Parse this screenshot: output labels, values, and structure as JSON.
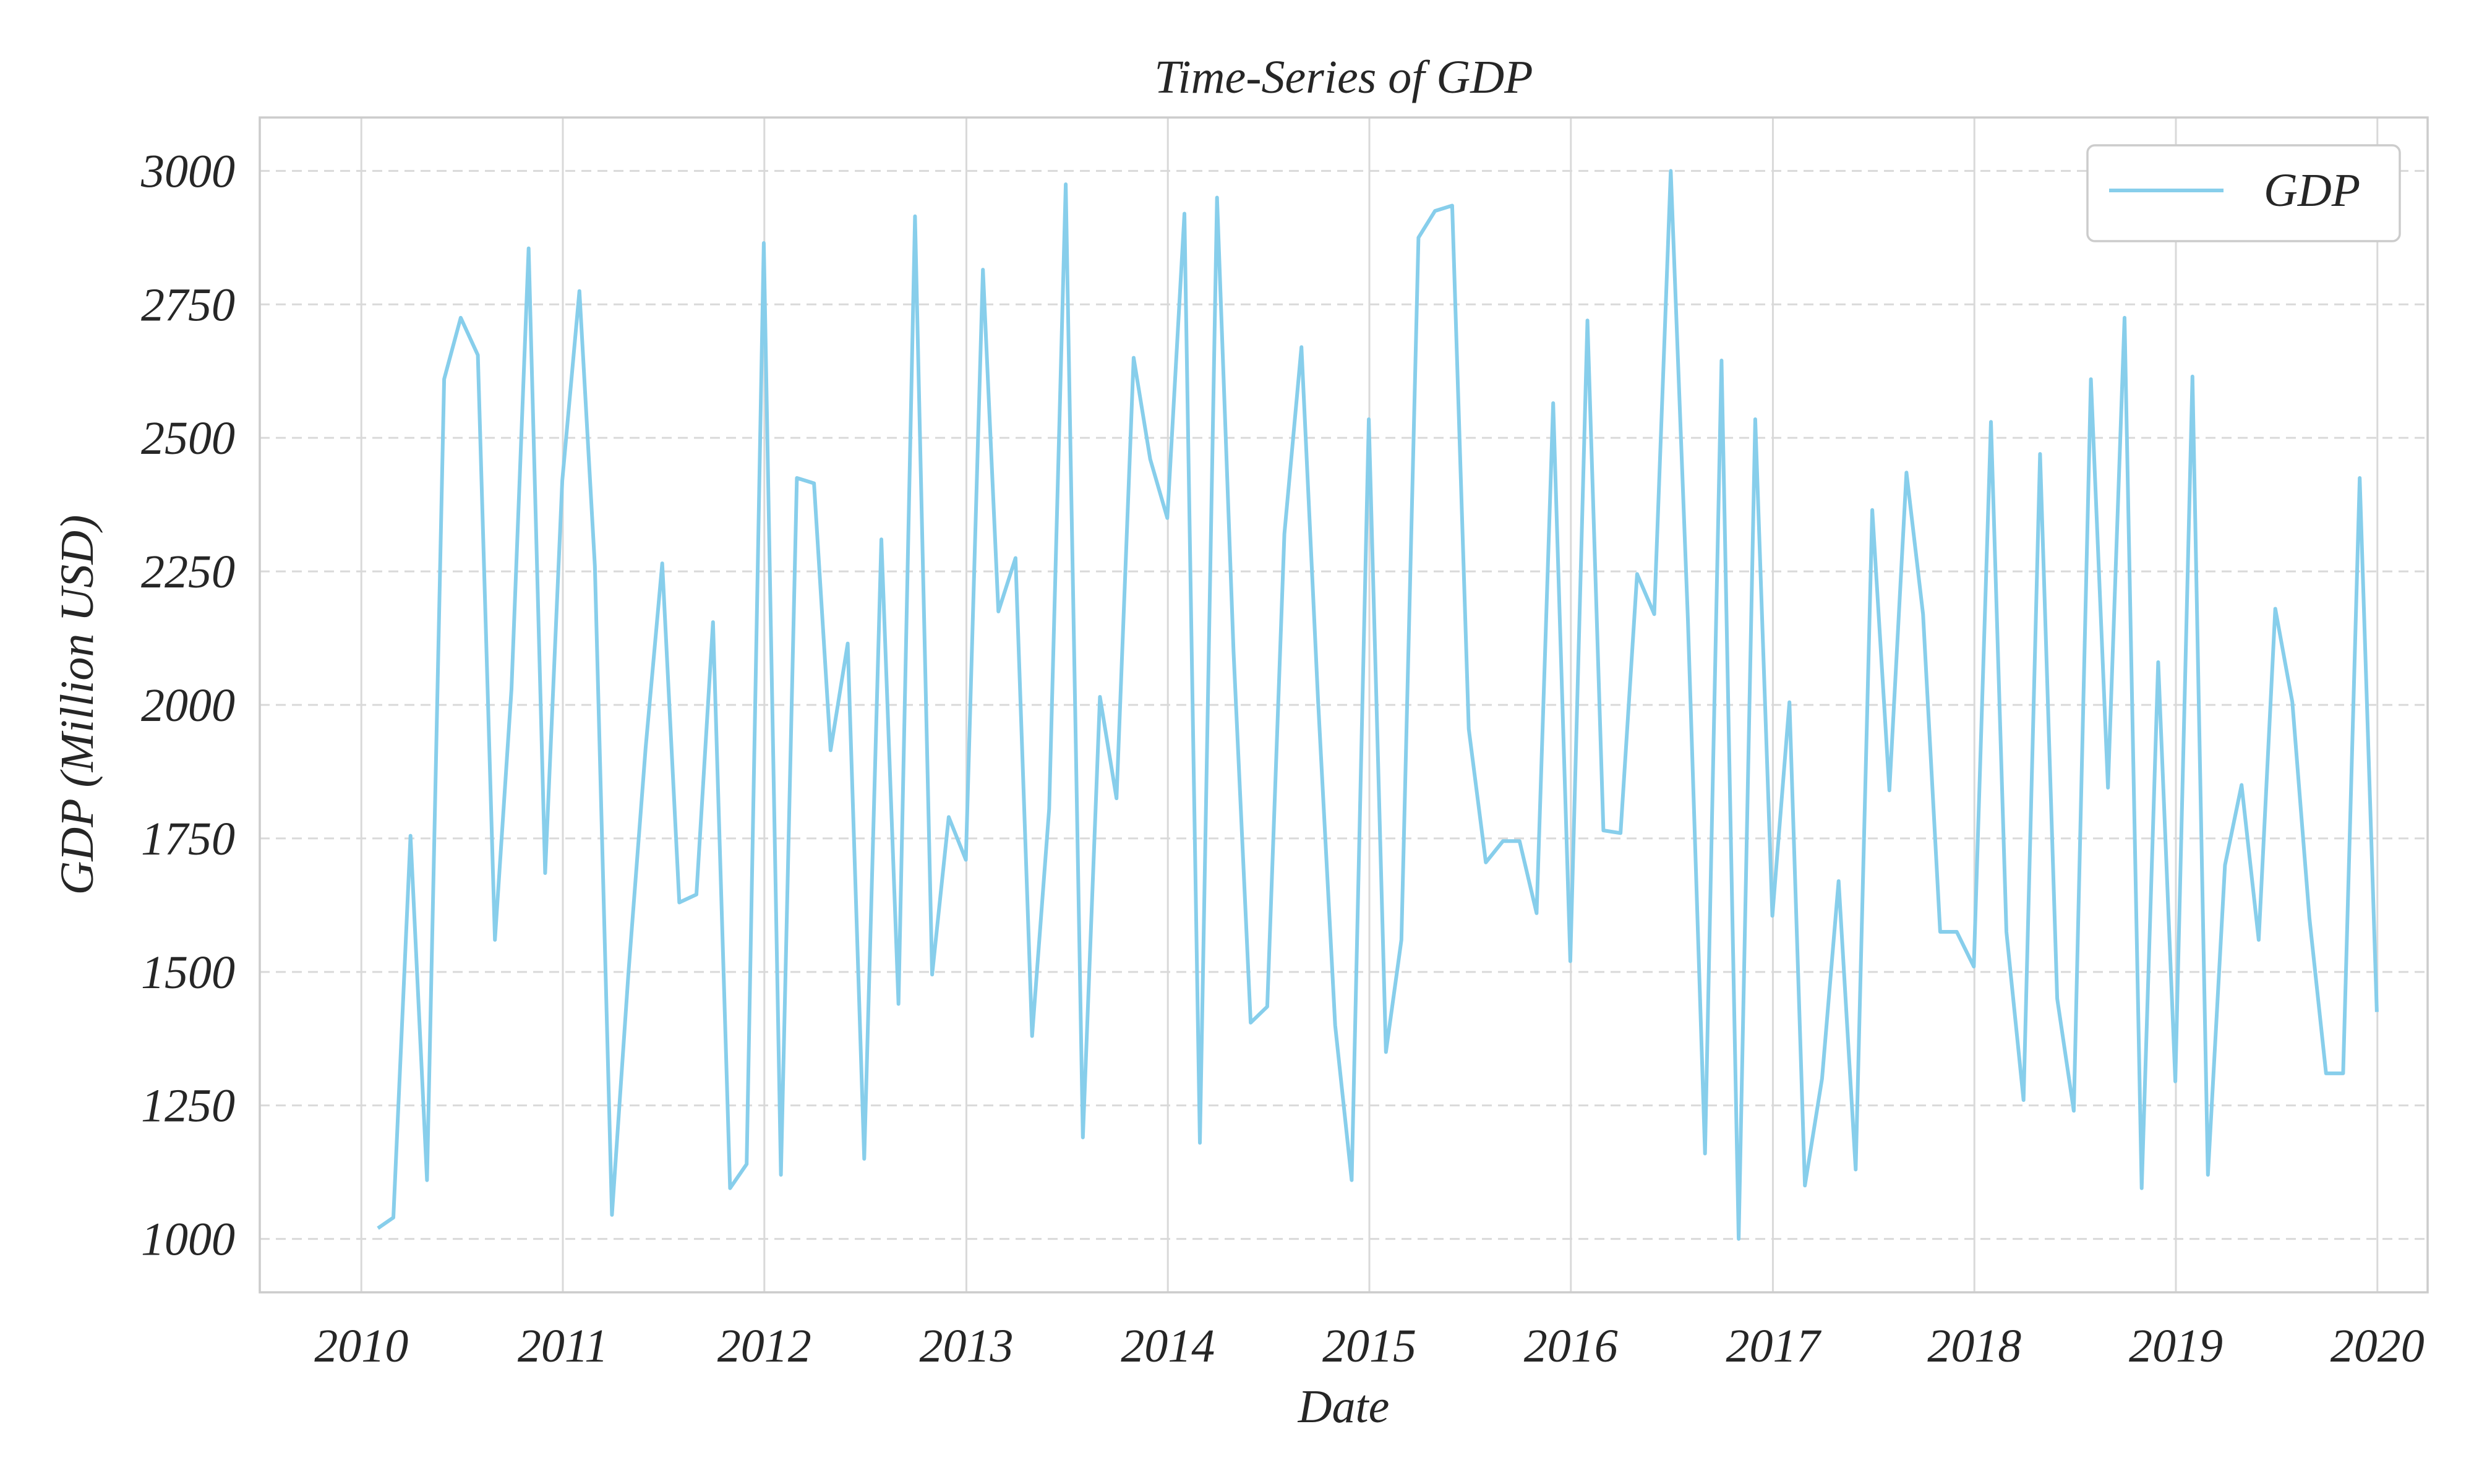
{
  "chart_data": {
    "type": "line",
    "title": "Time-Series of GDP",
    "xlabel": "Date",
    "ylabel": "GDP (Million USD)",
    "xlim": [
      "2009-07-01",
      "2020-04-01"
    ],
    "ylim": [
      900,
      3100
    ],
    "x_ticks": [
      "2010",
      "2011",
      "2012",
      "2013",
      "2014",
      "2015",
      "2016",
      "2017",
      "2018",
      "2019",
      "2020"
    ],
    "y_ticks": [
      1000,
      1250,
      1500,
      1750,
      2000,
      2250,
      2500,
      2750,
      3000
    ],
    "grid": true,
    "legend": {
      "position": "top-right",
      "entries": [
        "GDP"
      ]
    },
    "colors": {
      "series": "#87ceeb"
    },
    "series": [
      {
        "name": "GDP",
        "x": [
          "2010-01-31",
          "2010-02-28",
          "2010-03-31",
          "2010-04-30",
          "2010-05-31",
          "2010-06-30",
          "2010-07-31",
          "2010-08-31",
          "2010-09-30",
          "2010-10-31",
          "2010-11-30",
          "2010-12-31",
          "2011-01-31",
          "2011-02-28",
          "2011-03-31",
          "2011-04-30",
          "2011-05-31",
          "2011-06-30",
          "2011-07-31",
          "2011-08-31",
          "2011-09-30",
          "2011-10-31",
          "2011-11-30",
          "2011-12-31",
          "2012-01-31",
          "2012-02-29",
          "2012-03-31",
          "2012-04-30",
          "2012-05-31",
          "2012-06-30",
          "2012-07-31",
          "2012-08-31",
          "2012-09-30",
          "2012-10-31",
          "2012-11-30",
          "2012-12-31",
          "2013-01-31",
          "2013-02-28",
          "2013-03-31",
          "2013-04-30",
          "2013-05-31",
          "2013-06-30",
          "2013-07-31",
          "2013-08-31",
          "2013-09-30",
          "2013-10-31",
          "2013-11-30",
          "2013-12-31",
          "2014-01-31",
          "2014-02-28",
          "2014-03-31",
          "2014-04-30",
          "2014-05-31",
          "2014-06-30",
          "2014-07-31",
          "2014-08-31",
          "2014-09-30",
          "2014-10-31",
          "2014-11-30",
          "2014-12-31",
          "2015-01-31",
          "2015-02-28",
          "2015-03-31",
          "2015-04-30",
          "2015-05-31",
          "2015-06-30",
          "2015-07-31",
          "2015-08-31",
          "2015-09-30",
          "2015-10-31",
          "2015-11-30",
          "2015-12-31",
          "2016-01-31",
          "2016-02-29",
          "2016-03-31",
          "2016-04-30",
          "2016-05-31",
          "2016-06-30",
          "2016-07-31",
          "2016-08-31",
          "2016-09-30",
          "2016-10-31",
          "2016-11-30",
          "2016-12-31",
          "2017-01-31",
          "2017-02-28",
          "2017-03-31",
          "2017-04-30",
          "2017-05-31",
          "2017-06-30",
          "2017-07-31",
          "2017-08-31",
          "2017-09-30",
          "2017-10-31",
          "2017-11-30",
          "2017-12-31",
          "2018-01-31",
          "2018-02-28",
          "2018-03-31",
          "2018-04-30",
          "2018-05-31",
          "2018-06-30",
          "2018-07-31",
          "2018-08-31",
          "2018-09-30",
          "2018-10-31",
          "2018-11-30",
          "2018-12-31",
          "2019-01-31",
          "2019-02-28",
          "2019-03-31",
          "2019-04-30",
          "2019-05-31",
          "2019-06-30",
          "2019-07-31",
          "2019-08-31",
          "2019-09-30",
          "2019-10-31",
          "2019-11-30",
          "2019-12-31"
        ],
        "values": [
          1020,
          1040,
          1755,
          1110,
          2610,
          2725,
          2655,
          1560,
          2030,
          2855,
          1685,
          2420,
          2775,
          2260,
          1045,
          1500,
          1920,
          2265,
          1630,
          1645,
          2155,
          1095,
          1140,
          2865,
          1120,
          2425,
          2415,
          1915,
          2115,
          1150,
          2310,
          1440,
          2915,
          1495,
          1790,
          1710,
          2815,
          2175,
          2275,
          1380,
          1805,
          2975,
          1190,
          2015,
          1825,
          2650,
          2460,
          2350,
          2920,
          1180,
          2950,
          2100,
          1405,
          1435,
          2320,
          2670,
          2010,
          1400,
          1110,
          2535,
          1350,
          1560,
          2875,
          2925,
          2935,
          1955,
          1705,
          1745,
          1745,
          1610,
          2565,
          1520,
          2720,
          1765,
          1760,
          2245,
          2170,
          3000,
          2160,
          1160,
          2645,
          1000,
          2535,
          1605,
          2005,
          1100,
          1300,
          1670,
          1130,
          2365,
          1840,
          2435,
          2170,
          1575,
          1575,
          1510,
          2530,
          1575,
          1260,
          2470,
          1450,
          1240,
          2610,
          1845,
          2725,
          1095,
          2080,
          1295,
          2615,
          1120,
          1700,
          1850,
          1560,
          2180,
          2005,
          1600,
          1310,
          1310,
          2425,
          1425
        ]
      }
    ]
  }
}
